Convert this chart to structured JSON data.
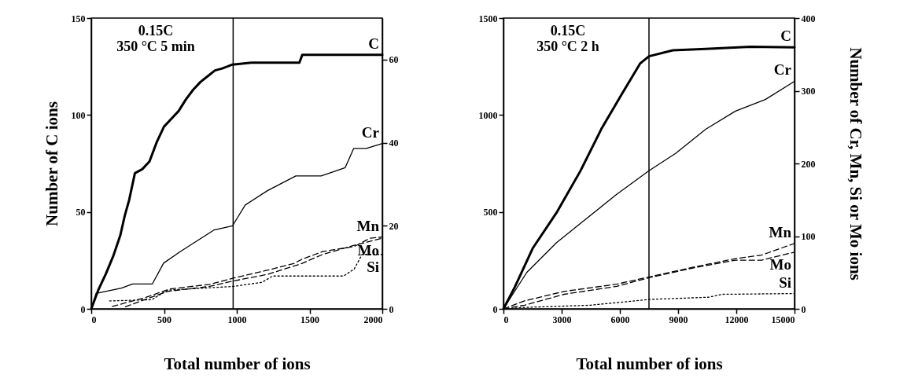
{
  "chart_data": [
    {
      "type": "line",
      "xlabel": "Total number of ions",
      "ylabel": "Number of C ions",
      "xlim": [
        0,
        2000
      ],
      "xticks": [
        0,
        500,
        1000,
        1500,
        2000
      ],
      "ylim": [
        0,
        150
      ],
      "yticks": [
        0,
        50,
        100,
        150
      ],
      "y2lim": [
        0,
        70
      ],
      "y2ticks": [
        0,
        20,
        40,
        60
      ],
      "annotations": [
        "0.15C",
        "350 °C 5 min"
      ],
      "ref_lines": [
        {
          "axis": "x",
          "value": 975
        }
      ],
      "series": [
        {
          "name": "C",
          "color": "#000000",
          "line_style": "solid",
          "x": [
            0,
            50,
            100,
            150,
            200,
            230,
            260,
            300,
            350,
            400,
            450,
            500,
            550,
            600,
            650,
            700,
            750,
            800,
            850,
            900,
            970,
            1100,
            1430,
            1450,
            2000
          ],
          "values": [
            0,
            10,
            18,
            27,
            38,
            48,
            56,
            70,
            72,
            76,
            86,
            94,
            98,
            102,
            108,
            113,
            117,
            120,
            123,
            124,
            126,
            127,
            127,
            131,
            131
          ]
        },
        {
          "name": "Cr",
          "color": "#000000",
          "line_style": "solid",
          "axis": "y2",
          "x": [
            0,
            33,
            72,
            207,
            284,
            420,
            497,
            613,
            729,
            845,
            971,
            1058,
            1213,
            1406,
            1580,
            1745,
            1803,
            1890,
            2000
          ],
          "values": [
            0,
            3.7,
            4,
            5,
            6,
            6,
            11,
            13.8,
            16.4,
            19,
            20,
            25,
            28.5,
            32,
            32,
            34,
            38.6,
            38.6,
            39.8
          ]
        },
        {
          "name": "Mn",
          "color": "#000000",
          "line_style": "dashed",
          "axis": "y2",
          "x": [
            145,
            361,
            542,
            813,
            976,
            1175,
            1391,
            1446,
            1590,
            1807,
            1915,
            2000
          ],
          "values": [
            0.6,
            2.6,
            4.8,
            5.9,
            7.4,
            9,
            10.9,
            11.9,
            13.8,
            15,
            17,
            17.3
          ]
        },
        {
          "name": "Mo",
          "color": "#000000",
          "line_style": "dashed",
          "axis": "y2",
          "x": [
            235,
            343,
            524,
            813,
            976,
            1211,
            1446,
            1590,
            1807,
            2000
          ],
          "values": [
            0.5,
            1.9,
            4.2,
            5.4,
            6.7,
            8.3,
            10.9,
            13.1,
            15.3,
            17
          ]
        },
        {
          "name": "Si",
          "color": "#000000",
          "line_style": "dotted",
          "axis": "y2",
          "x": [
            126,
            416,
            524,
            976,
            1175,
            1247,
            1735,
            1807,
            1861,
            2000
          ],
          "values": [
            1.9,
            2.2,
            4.5,
            5.4,
            6.4,
            7.9,
            7.9,
            9.6,
            13.1,
            13.1
          ]
        }
      ]
    },
    {
      "type": "line",
      "xlabel": "Total number of ions",
      "y2label": "Number of Cr, Mn, Si or Mo ions",
      "xlim": [
        0,
        15000
      ],
      "xticks": [
        0,
        3000,
        6000,
        9000,
        12000,
        15000
      ],
      "ylim": [
        0,
        1500
      ],
      "yticks": [
        0,
        500,
        1000,
        1500
      ],
      "y2lim": [
        0,
        400
      ],
      "y2ticks": [
        0,
        100,
        200,
        300,
        400
      ],
      "annotations": [
        "0.15C",
        "350 °C 2 h"
      ],
      "ref_lines": [
        {
          "axis": "x",
          "value": 7500
        }
      ],
      "series": [
        {
          "name": "C",
          "color": "#000000",
          "line_style": "solid",
          "x": [
            0,
            584,
            1506,
            2736,
            3965,
            5041,
            6117,
            7039,
            7500,
            8730,
            10421,
            12726,
            15000
          ],
          "values": [
            0,
            112,
            312,
            496,
            711,
            927,
            1111,
            1265,
            1303,
            1334,
            1341,
            1352,
            1349
          ]
        },
        {
          "name": "Cr",
          "color": "#000000",
          "line_style": "solid",
          "axis": "y2",
          "x": [
            0,
            1199,
            2736,
            4273,
            5810,
            7500,
            8884,
            10421,
            11958,
            13495,
            15000
          ],
          "values": [
            0,
            50,
            91,
            124,
            157,
            190,
            214,
            247,
            272,
            288,
            313
          ]
        },
        {
          "name": "Mn",
          "color": "#000000",
          "line_style": "dashed",
          "axis": "y2",
          "x": [
            0,
            1087,
            3123,
            5840,
            7533,
            9911,
            11947,
            13303,
            15000
          ],
          "values": [
            0,
            11,
            24,
            34,
            44,
            58,
            69,
            74,
            90
          ]
        },
        {
          "name": "Mo",
          "color": "#000000",
          "line_style": "dashed",
          "axis": "y2",
          "x": [
            0,
            1087,
            3123,
            5840,
            7533,
            9911,
            11947,
            13303,
            15000
          ],
          "values": [
            0,
            5,
            20,
            31,
            43,
            57,
            67,
            67,
            78
          ]
        },
        {
          "name": "Si",
          "color": "#000000",
          "line_style": "dotted",
          "axis": "y2",
          "x": [
            0,
            1087,
            4479,
            7533,
            10587,
            11268,
            15000
          ],
          "values": [
            0,
            2,
            5,
            13,
            16,
            20,
            21
          ]
        }
      ]
    }
  ]
}
